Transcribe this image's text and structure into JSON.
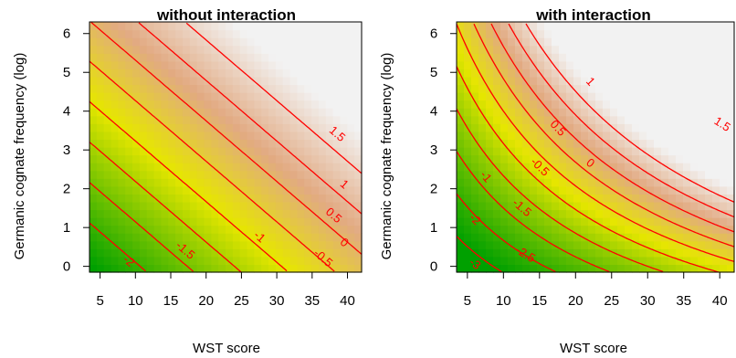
{
  "figure": {
    "ylabel": "Germanic cognate frequency (log)",
    "xlabel": "WST score"
  },
  "colors": {
    "contour": "#ff0000",
    "low": "#00a000",
    "mid": "#e6e600",
    "high": "#f2f2f2"
  },
  "chart_data": [
    {
      "type": "heatmap",
      "title": "without interaction",
      "xlabel": "WST score",
      "ylabel": "Germanic cognate frequency (log)",
      "xlim": [
        3.5,
        42
      ],
      "ylim": [
        -0.15,
        6.3
      ],
      "x_ticks": [
        "5",
        "10",
        "15",
        "20",
        "25",
        "30",
        "35",
        "40"
      ],
      "y_ticks": [
        "0",
        "1",
        "2",
        "3",
        "4",
        "5",
        "6"
      ],
      "surface": {
        "intercept": -2.8,
        "coef_x": 0.075,
        "coef_y": 0.48,
        "coef_xy": 0
      },
      "z_range": [
        -2.5,
        2.0
      ],
      "contour_levels": [
        -2,
        -1.5,
        -1,
        -0.5,
        0,
        0.5,
        1,
        1.5
      ],
      "contour_labels": [
        {
          "text": "-2",
          "x": 9,
          "y": 0.12
        },
        {
          "text": "-1.5",
          "x": 17,
          "y": 0.4
        },
        {
          "text": "-1",
          "x": 27.5,
          "y": 0.75
        },
        {
          "text": "-0.5",
          "x": 36.5,
          "y": 0.2
        },
        {
          "text": "0",
          "x": 39.5,
          "y": 0.6
        },
        {
          "text": "0.5",
          "x": 38,
          "y": 1.3
        },
        {
          "text": "1",
          "x": 39.5,
          "y": 2.1
        },
        {
          "text": "1.5",
          "x": 38.5,
          "y": 3.4
        }
      ]
    },
    {
      "type": "heatmap",
      "title": "with interaction",
      "xlabel": "WST score",
      "ylabel": "Germanic cognate frequency (log)",
      "xlim": [
        3.5,
        42
      ],
      "ylim": [
        -0.15,
        6.3
      ],
      "x_ticks": [
        "5",
        "10",
        "15",
        "20",
        "25",
        "30",
        "35",
        "40"
      ],
      "y_ticks": [
        "0",
        "1",
        "2",
        "3",
        "4",
        "5",
        "6"
      ],
      "surface": {
        "intercept": -3.6,
        "coef_x": 0.07,
        "coef_y": 0.38,
        "coef_xy": 0.022
      },
      "z_range": [
        -3.0,
        2.0
      ],
      "contour_levels": [
        -3,
        -2.5,
        -2,
        -1.5,
        -1,
        -0.5,
        0,
        0.5,
        1,
        1.5
      ],
      "contour_labels": [
        {
          "text": "-3",
          "x": 6,
          "y": 0.05
        },
        {
          "text": "-2.5",
          "x": 13,
          "y": 0.3
        },
        {
          "text": "-2",
          "x": 6,
          "y": 1.2
        },
        {
          "text": "-1.5",
          "x": 12.5,
          "y": 1.5
        },
        {
          "text": "-1",
          "x": 7.5,
          "y": 2.3
        },
        {
          "text": "-0.5",
          "x": 15,
          "y": 2.55
        },
        {
          "text": "0",
          "x": 22,
          "y": 2.65
        },
        {
          "text": "0.5",
          "x": 17.5,
          "y": 3.55
        },
        {
          "text": "1",
          "x": 22,
          "y": 4.75
        },
        {
          "text": "1.5",
          "x": 40.3,
          "y": 3.65
        }
      ]
    }
  ]
}
